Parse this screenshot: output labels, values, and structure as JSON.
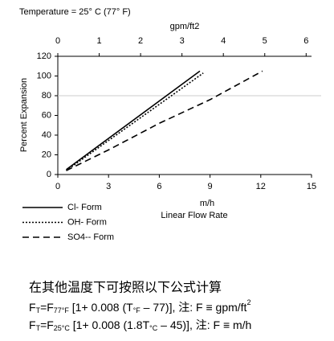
{
  "chart_data": {
    "type": "line",
    "title": "Temperature = 25° C (77° F)",
    "x_label": "m/h",
    "x_sublabel": "Linear Flow Rate",
    "y_label": "Percent Expansion",
    "x2_label": "gpm/ft2",
    "xlim": [
      0,
      15
    ],
    "xticks": [
      0,
      3,
      6,
      9,
      12,
      15
    ],
    "x2lim": [
      0,
      6.13
    ],
    "x2ticks": [
      0,
      1,
      2,
      3,
      4,
      5,
      6
    ],
    "ylim": [
      0,
      120
    ],
    "yticks": [
      0,
      20,
      40,
      60,
      80,
      100,
      120
    ],
    "reference_line": 80,
    "series": [
      {
        "name": "Cl- Form",
        "color": "#000000",
        "dash": "solid",
        "x": [
          0.5,
          8.4
        ],
        "values": [
          5,
          105
        ]
      },
      {
        "name": "OH- Form",
        "color": "#000000",
        "dash": "dotted",
        "x": [
          0.5,
          8.6
        ],
        "values": [
          4,
          103
        ]
      },
      {
        "name": "SO4-- Form",
        "color": "#000000",
        "dash": "dashed",
        "x": [
          0.5,
          3,
          6,
          9,
          12.1
        ],
        "values": [
          4,
          25,
          52,
          76,
          105
        ]
      }
    ]
  },
  "notes": {
    "heading": "在其他温度下可按照以下公式计算",
    "formulas": [
      [
        {
          "text": "F"
        },
        {
          "text": "T",
          "sub": true
        },
        {
          "text": "=F"
        },
        {
          "text": "77°F",
          "sub": true
        },
        {
          "text": " [1+ 0.008 (T"
        },
        {
          "text": "°F",
          "sub": true
        },
        {
          "text": " – 77)], 注: F ≡ gpm/ft"
        },
        {
          "text": "2",
          "sup": true
        }
      ],
      [
        {
          "text": "F"
        },
        {
          "text": "T",
          "sub": true
        },
        {
          "text": "=F"
        },
        {
          "text": "25°C",
          "sub": true
        },
        {
          "text": " [1+ 0.008 (1.8T"
        },
        {
          "text": "°C",
          "sub": true
        },
        {
          "text": " – 45)], 注: F ≡ m/h"
        }
      ]
    ]
  }
}
